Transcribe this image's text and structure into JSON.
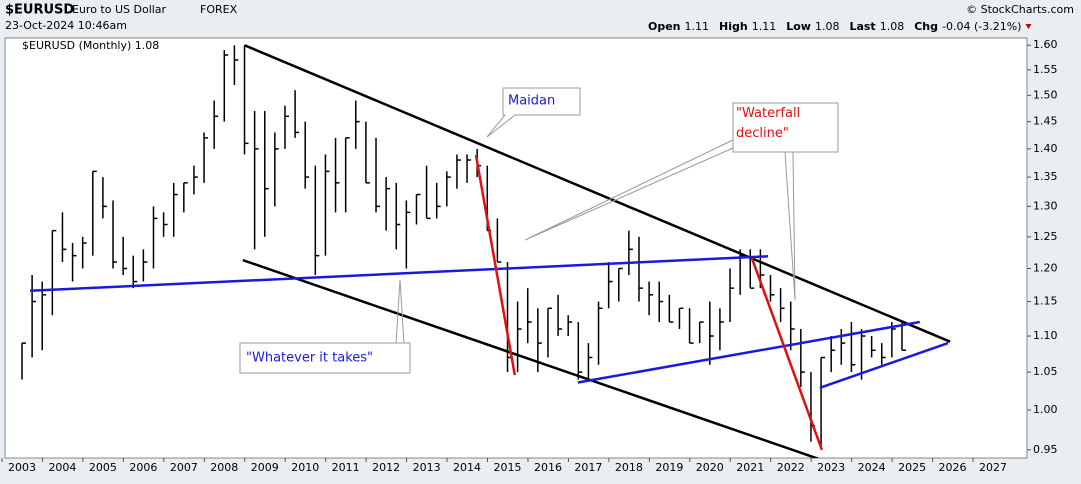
{
  "header": {
    "symbol": "$EURUSD",
    "name": "Euro to US Dollar",
    "exchange": "FOREX",
    "timestamp": "23-Oct-2024 10:46am",
    "copyright": "© StockCharts.com",
    "quote": [
      {
        "label": "Open",
        "value": "1.11"
      },
      {
        "label": "High",
        "value": "1.11"
      },
      {
        "label": "Low",
        "value": "1.08"
      },
      {
        "label": "Last",
        "value": "1.08"
      },
      {
        "label": "Chg",
        "value": "-0.04 (-3.21%)"
      }
    ]
  },
  "chart_data": {
    "type": "ohlc",
    "label": "$EURUSD (Monthly) 1.08",
    "log_scale": true,
    "color": "#000000",
    "x": [
      2003.0,
      2003.25,
      2003.5,
      2003.75,
      2004.0,
      2004.25,
      2004.5,
      2004.75,
      2005.0,
      2005.25,
      2005.5,
      2005.75,
      2006.0,
      2006.25,
      2006.5,
      2006.75,
      2007.0,
      2007.25,
      2007.5,
      2007.75,
      2008.0,
      2008.25,
      2008.5,
      2008.75,
      2009.0,
      2009.25,
      2009.5,
      2009.75,
      2010.0,
      2010.25,
      2010.5,
      2010.75,
      2011.0,
      2011.25,
      2011.5,
      2011.75,
      2012.0,
      2012.25,
      2012.5,
      2012.75,
      2013.0,
      2013.25,
      2013.5,
      2013.75,
      2014.0,
      2014.25,
      2014.5,
      2014.75,
      2015.0,
      2015.25,
      2015.5,
      2015.75,
      2016.0,
      2016.25,
      2016.5,
      2016.75,
      2017.0,
      2017.25,
      2017.5,
      2017.75,
      2018.0,
      2018.25,
      2018.5,
      2018.75,
      2019.0,
      2019.25,
      2019.5,
      2019.75,
      2020.0,
      2020.25,
      2020.5,
      2020.75,
      2021.0,
      2021.25,
      2021.5,
      2021.75,
      2022.0,
      2022.25,
      2022.5,
      2022.75,
      2023.0,
      2023.25,
      2023.5,
      2023.75,
      2024.0,
      2024.25,
      2024.5,
      2024.75
    ],
    "high": [
      1.09,
      1.19,
      1.18,
      1.26,
      1.29,
      1.24,
      1.25,
      1.36,
      1.35,
      1.31,
      1.25,
      1.22,
      1.23,
      1.3,
      1.29,
      1.34,
      1.34,
      1.37,
      1.43,
      1.49,
      1.59,
      1.6,
      1.6,
      1.47,
      1.47,
      1.43,
      1.48,
      1.51,
      1.45,
      1.37,
      1.39,
      1.42,
      1.42,
      1.49,
      1.45,
      1.42,
      1.35,
      1.34,
      1.31,
      1.32,
      1.37,
      1.34,
      1.36,
      1.39,
      1.39,
      1.4,
      1.37,
      1.28,
      1.21,
      1.15,
      1.17,
      1.14,
      1.14,
      1.16,
      1.13,
      1.12,
      1.09,
      1.15,
      1.21,
      1.2,
      1.26,
      1.25,
      1.18,
      1.18,
      1.16,
      1.14,
      1.14,
      1.12,
      1.15,
      1.14,
      1.2,
      1.23,
      1.23,
      1.23,
      1.19,
      1.17,
      1.15,
      1.11,
      1.05,
      1.07,
      1.1,
      1.11,
      1.12,
      1.11,
      1.1,
      1.09,
      1.12,
      1.12
    ],
    "low": [
      1.04,
      1.07,
      1.08,
      1.13,
      1.21,
      1.18,
      1.2,
      1.22,
      1.28,
      1.2,
      1.19,
      1.17,
      1.18,
      1.2,
      1.25,
      1.25,
      1.29,
      1.32,
      1.34,
      1.4,
      1.45,
      1.52,
      1.39,
      1.23,
      1.25,
      1.3,
      1.4,
      1.42,
      1.33,
      1.19,
      1.22,
      1.29,
      1.29,
      1.4,
      1.34,
      1.29,
      1.26,
      1.23,
      1.2,
      1.27,
      1.28,
      1.28,
      1.3,
      1.33,
      1.34,
      1.35,
      1.26,
      1.21,
      1.05,
      1.05,
      1.09,
      1.05,
      1.07,
      1.1,
      1.1,
      1.04,
      1.04,
      1.06,
      1.14,
      1.15,
      1.19,
      1.15,
      1.13,
      1.12,
      1.12,
      1.11,
      1.09,
      1.09,
      1.06,
      1.08,
      1.12,
      1.16,
      1.17,
      1.17,
      1.15,
      1.12,
      1.08,
      1.03,
      0.96,
      0.95,
      1.05,
      1.06,
      1.05,
      1.04,
      1.07,
      1.06,
      1.07,
      1.08
    ],
    "close": [
      1.09,
      1.15,
      1.16,
      1.26,
      1.23,
      1.22,
      1.24,
      1.36,
      1.3,
      1.21,
      1.2,
      1.18,
      1.21,
      1.28,
      1.27,
      1.32,
      1.34,
      1.35,
      1.42,
      1.46,
      1.58,
      1.57,
      1.41,
      1.4,
      1.33,
      1.4,
      1.46,
      1.43,
      1.35,
      1.22,
      1.36,
      1.34,
      1.42,
      1.45,
      1.34,
      1.3,
      1.33,
      1.27,
      1.29,
      1.32,
      1.28,
      1.3,
      1.35,
      1.38,
      1.38,
      1.37,
      1.26,
      1.21,
      1.07,
      1.11,
      1.12,
      1.09,
      1.14,
      1.11,
      1.12,
      1.05,
      1.07,
      1.14,
      1.18,
      1.2,
      1.23,
      1.17,
      1.16,
      1.15,
      1.12,
      1.14,
      1.09,
      1.12,
      1.1,
      1.12,
      1.17,
      1.22,
      1.17,
      1.19,
      1.16,
      1.14,
      1.11,
      1.05,
      0.98,
      1.07,
      1.08,
      1.09,
      1.06,
      1.1,
      1.08,
      1.07,
      1.11,
      1.08
    ],
    "xlim": [
      2002.58,
      2027.84
    ],
    "ylim": [
      0.94,
      1.615
    ],
    "xticks": [
      2003,
      2004,
      2005,
      2006,
      2007,
      2008,
      2009,
      2010,
      2011,
      2012,
      2013,
      2014,
      2015,
      2016,
      2017,
      2018,
      2019,
      2020,
      2021,
      2022,
      2023,
      2024,
      2025,
      2026,
      2027
    ],
    "yticks": [
      {
        "value": 0.95,
        "label": "0.95"
      },
      {
        "value": 1.0,
        "label": "1.00"
      },
      {
        "value": 1.05,
        "label": "1.05"
      },
      {
        "value": 1.1,
        "label": "1.10"
      },
      {
        "value": 1.15,
        "label": "1.15"
      },
      {
        "value": 1.2,
        "label": "1.20"
      },
      {
        "value": 1.25,
        "label": "1.25"
      },
      {
        "value": 1.3,
        "label": "1.30"
      },
      {
        "value": 1.35,
        "label": "1.35"
      },
      {
        "value": 1.4,
        "label": "1.40"
      },
      {
        "value": 1.45,
        "label": "1.45"
      },
      {
        "value": 1.5,
        "label": "1.50"
      },
      {
        "value": 1.55,
        "label": "1.55"
      },
      {
        "value": 1.6,
        "label": "1.60"
      }
    ],
    "trendlines": [
      {
        "x": [
          2008.5,
          2025.94
        ],
        "y": [
          1.6,
          1.092
        ],
        "color": "#000000"
      },
      {
        "x": [
          2008.46,
          2023.46
        ],
        "y": [
          1.213,
          0.926
        ],
        "color": "#000000"
      },
      {
        "x": [
          2003.2,
          2021.44
        ],
        "y": [
          1.166,
          1.219
        ],
        "color": "#1a1adc"
      },
      {
        "x": [
          2016.74,
          2025.19
        ],
        "y": [
          1.036,
          1.12
        ],
        "color": "#1a1adc"
      },
      {
        "x": [
          2022.72,
          2025.89
        ],
        "y": [
          1.029,
          1.09
        ],
        "color": "#1a1adc"
      },
      {
        "x": [
          2014.22,
          2015.18
        ],
        "y": [
          1.389,
          1.046
        ],
        "color": "#e01010"
      },
      {
        "x": [
          2021.04,
          2022.77
        ],
        "y": [
          1.216,
          0.95
        ],
        "color": "#e01010"
      }
    ],
    "annotations": [
      "Maidan",
      "\"Waterfall decline\"",
      "\"Whatever it takes\""
    ]
  }
}
